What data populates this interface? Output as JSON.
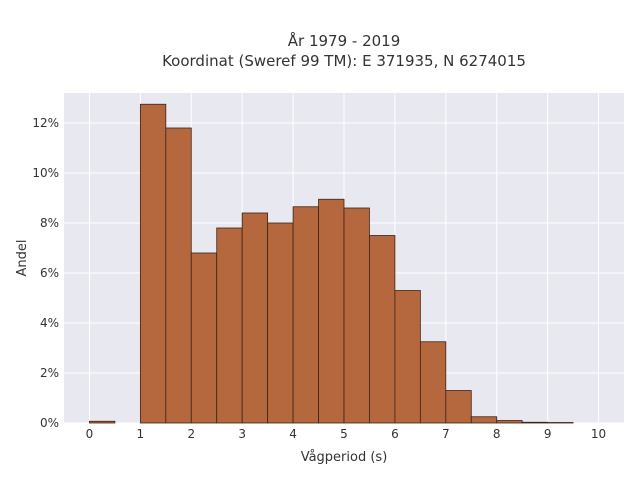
{
  "chart_data": {
    "type": "bar",
    "title": [
      "År 1979 - 2019",
      "Koordinat (Sweref 99 TM): E 371935, N 6274015"
    ],
    "xlabel": "Vågperiod (s)",
    "ylabel": "Andel",
    "xlim": [
      -0.5,
      10.5
    ],
    "ylim": [
      0,
      13.2
    ],
    "x_ticks": [
      0,
      1,
      2,
      3,
      4,
      5,
      6,
      7,
      8,
      9,
      10
    ],
    "x_tick_labels": [
      "0",
      "1",
      "2",
      "3",
      "4",
      "5",
      "6",
      "7",
      "8",
      "9",
      "10"
    ],
    "y_ticks": [
      0,
      2,
      4,
      6,
      8,
      10,
      12
    ],
    "y_tick_labels": [
      "0%",
      "2%",
      "4%",
      "6%",
      "8%",
      "10%",
      "12%"
    ],
    "grid": true,
    "bin_width": 0.5,
    "bins": [
      {
        "x0": 0.0,
        "value": 0.07
      },
      {
        "x0": 1.0,
        "value": 12.75
      },
      {
        "x0": 1.5,
        "value": 11.8
      },
      {
        "x0": 2.0,
        "value": 6.8
      },
      {
        "x0": 2.5,
        "value": 7.8
      },
      {
        "x0": 3.0,
        "value": 8.4
      },
      {
        "x0": 3.5,
        "value": 8.0
      },
      {
        "x0": 4.0,
        "value": 8.65
      },
      {
        "x0": 4.5,
        "value": 8.95
      },
      {
        "x0": 5.0,
        "value": 8.6
      },
      {
        "x0": 5.5,
        "value": 7.5
      },
      {
        "x0": 6.0,
        "value": 5.3
      },
      {
        "x0": 6.5,
        "value": 3.25
      },
      {
        "x0": 7.0,
        "value": 1.3
      },
      {
        "x0": 7.5,
        "value": 0.25
      },
      {
        "x0": 8.0,
        "value": 0.1
      },
      {
        "x0": 8.5,
        "value": 0.03
      },
      {
        "x0": 9.0,
        "value": 0.02
      }
    ],
    "colors": {
      "bar_fill": "#b5673d",
      "bar_stroke": "#3d2417",
      "plot_bg": "#e8e8f0",
      "grid": "#ffffff",
      "text": "#333333"
    }
  }
}
